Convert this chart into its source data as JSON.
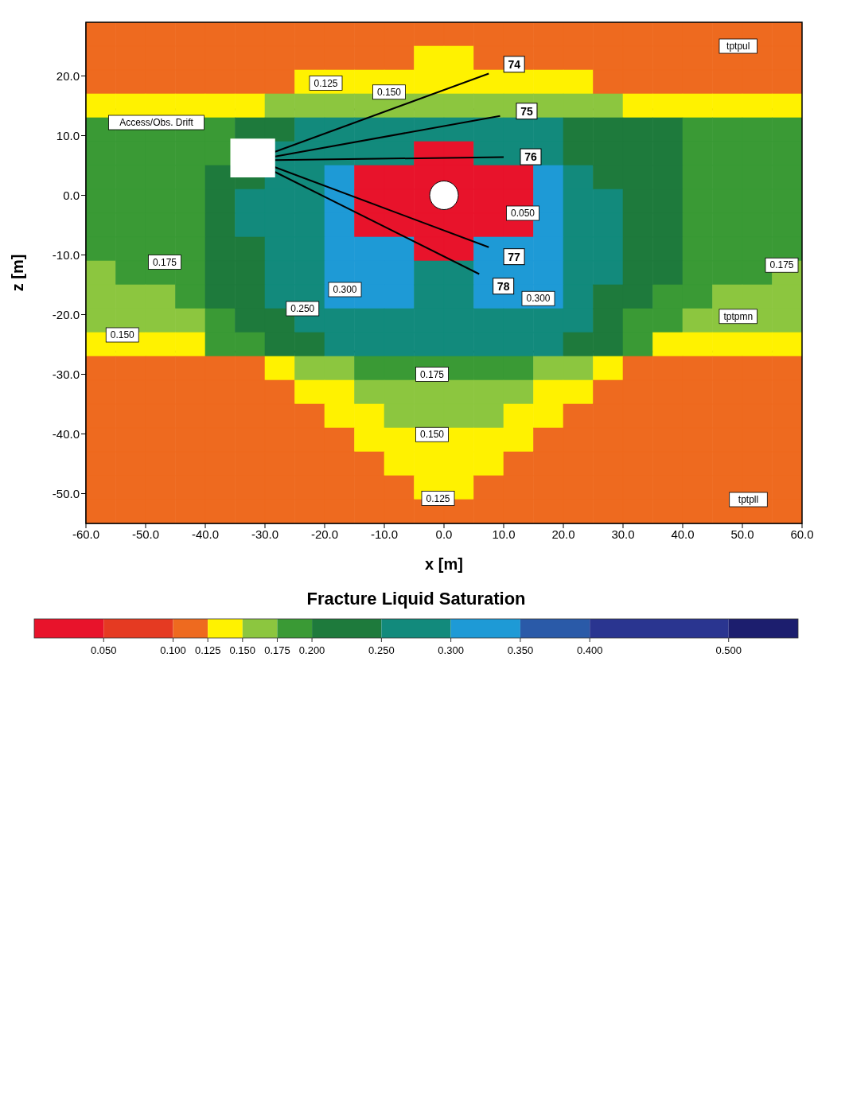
{
  "chart_data": {
    "type": "heatmap",
    "xlabel": "x [m]",
    "ylabel": "z [m]",
    "clabel": "Fracture Liquid Saturation",
    "xlim": [
      -60,
      60
    ],
    "ylim": [
      -55,
      29
    ],
    "xticks": [
      {
        "value": -60,
        "label": "-60.0"
      },
      {
        "value": -50,
        "label": "-50.0"
      },
      {
        "value": -40,
        "label": "-40.0"
      },
      {
        "value": -30,
        "label": "-30.0"
      },
      {
        "value": -20,
        "label": "-20.0"
      },
      {
        "value": -10,
        "label": "-10.0"
      },
      {
        "value": 0,
        "label": "0.0"
      },
      {
        "value": 10,
        "label": "10.0"
      },
      {
        "value": 20,
        "label": "20.0"
      },
      {
        "value": 30,
        "label": "30.0"
      },
      {
        "value": 40,
        "label": "40.0"
      },
      {
        "value": 50,
        "label": "50.0"
      },
      {
        "value": 60,
        "label": "60.0"
      }
    ],
    "yticks": [
      {
        "value": -50,
        "label": "-50.0"
      },
      {
        "value": -40,
        "label": "-40.0"
      },
      {
        "value": -30,
        "label": "-30.0"
      },
      {
        "value": -20,
        "label": "-20.0"
      },
      {
        "value": -10,
        "label": "-10.0"
      },
      {
        "value": 0,
        "label": "0.0"
      },
      {
        "value": 10,
        "label": "10.0"
      },
      {
        "value": 20,
        "label": "20.0"
      }
    ],
    "clim": [
      0,
      0.55
    ],
    "cticks": [
      {
        "value": 0.05,
        "label": "0.050"
      },
      {
        "value": 0.1,
        "label": "0.100"
      },
      {
        "value": 0.125,
        "label": "0.125"
      },
      {
        "value": 0.15,
        "label": "0.150"
      },
      {
        "value": 0.175,
        "label": "0.175"
      },
      {
        "value": 0.2,
        "label": "0.200"
      },
      {
        "value": 0.25,
        "label": "0.250"
      },
      {
        "value": 0.3,
        "label": "0.300"
      },
      {
        "value": 0.35,
        "label": "0.350"
      },
      {
        "value": 0.4,
        "label": "0.400"
      },
      {
        "value": 0.5,
        "label": "0.500"
      }
    ],
    "colors": [
      "#e8132b",
      "#e53a22",
      "#ee6a1f",
      "#fff200",
      "#8cc63f",
      "#3a9a35",
      "#1e7a3c",
      "#128a7c",
      "#1e9ad6",
      "#2a5aa8",
      "#2a3590",
      "#1c1e6e"
    ],
    "cells": [
      [
        0.11,
        0.11,
        0.11,
        0.11,
        0.11,
        0.11,
        0.11,
        0.11,
        0.11,
        0.11,
        0.11,
        0.11,
        0.11,
        0.11,
        0.11,
        0.11,
        0.11,
        0.11,
        0.11,
        0.11,
        0.11,
        0.11,
        0.11,
        0.11
      ],
      [
        0.11,
        0.11,
        0.11,
        0.11,
        0.11,
        0.11,
        0.11,
        0.11,
        0.11,
        0.11,
        0.11,
        0.14,
        0.14,
        0.11,
        0.11,
        0.11,
        0.11,
        0.11,
        0.11,
        0.11,
        0.11,
        0.11,
        0.11,
        0.11
      ],
      [
        0.11,
        0.11,
        0.11,
        0.11,
        0.11,
        0.11,
        0.11,
        0.14,
        0.14,
        0.14,
        0.14,
        0.14,
        0.14,
        0.14,
        0.14,
        0.14,
        0.14,
        0.11,
        0.11,
        0.11,
        0.11,
        0.11,
        0.11,
        0.11
      ],
      [
        0.14,
        0.14,
        0.14,
        0.14,
        0.14,
        0.14,
        0.16,
        0.16,
        0.16,
        0.16,
        0.16,
        0.16,
        0.16,
        0.16,
        0.16,
        0.16,
        0.16,
        0.16,
        0.14,
        0.14,
        0.14,
        0.14,
        0.14,
        0.14
      ],
      [
        0.19,
        0.19,
        0.19,
        0.19,
        0.19,
        0.22,
        0.22,
        0.28,
        0.28,
        0.28,
        0.28,
        0.28,
        0.28,
        0.28,
        0.28,
        0.28,
        0.22,
        0.22,
        0.22,
        0.22,
        0.19,
        0.19,
        0.19,
        0.19
      ],
      [
        0.19,
        0.19,
        0.19,
        0.19,
        0.19,
        null,
        0.28,
        0.28,
        0.28,
        0.28,
        0.28,
        0.04,
        0.04,
        0.28,
        0.28,
        0.28,
        0.22,
        0.22,
        0.22,
        0.22,
        0.19,
        0.19,
        0.19,
        0.19
      ],
      [
        0.19,
        0.19,
        0.19,
        0.19,
        0.22,
        0.22,
        0.28,
        0.28,
        0.32,
        0.04,
        0.04,
        0.04,
        0.04,
        0.04,
        0.04,
        0.32,
        0.28,
        0.22,
        0.22,
        0.22,
        0.19,
        0.19,
        0.19,
        0.19
      ],
      [
        0.19,
        0.19,
        0.19,
        0.19,
        0.22,
        0.28,
        0.28,
        0.28,
        0.32,
        0.04,
        0.04,
        0.04,
        0.04,
        0.04,
        0.04,
        0.32,
        0.28,
        0.28,
        0.22,
        0.22,
        0.19,
        0.19,
        0.19,
        0.19
      ],
      [
        0.19,
        0.19,
        0.19,
        0.19,
        0.22,
        0.28,
        0.28,
        0.28,
        0.32,
        0.04,
        0.04,
        0.04,
        0.04,
        0.04,
        0.04,
        0.32,
        0.28,
        0.28,
        0.22,
        0.22,
        0.19,
        0.19,
        0.19,
        0.19
      ],
      [
        0.19,
        0.19,
        0.19,
        0.19,
        0.22,
        0.22,
        0.28,
        0.28,
        0.32,
        0.32,
        0.32,
        0.04,
        0.04,
        0.32,
        0.32,
        0.32,
        0.28,
        0.28,
        0.22,
        0.22,
        0.19,
        0.19,
        0.19,
        0.19
      ],
      [
        0.16,
        0.19,
        0.19,
        0.19,
        0.22,
        0.22,
        0.28,
        0.28,
        0.32,
        0.32,
        0.32,
        0.28,
        0.28,
        0.32,
        0.32,
        0.32,
        0.28,
        0.28,
        0.22,
        0.22,
        0.19,
        0.19,
        0.19,
        0.16
      ],
      [
        0.16,
        0.16,
        0.16,
        0.19,
        0.22,
        0.22,
        0.28,
        0.28,
        0.32,
        0.32,
        0.32,
        0.28,
        0.28,
        0.32,
        0.32,
        0.32,
        0.28,
        0.22,
        0.22,
        0.19,
        0.19,
        0.16,
        0.16,
        0.16
      ],
      [
        0.16,
        0.16,
        0.16,
        0.16,
        0.19,
        0.22,
        0.22,
        0.28,
        0.28,
        0.28,
        0.28,
        0.28,
        0.28,
        0.28,
        0.28,
        0.28,
        0.28,
        0.22,
        0.19,
        0.19,
        0.16,
        0.16,
        0.16,
        0.16
      ],
      [
        0.14,
        0.14,
        0.14,
        0.14,
        0.19,
        0.19,
        0.22,
        0.22,
        0.28,
        0.28,
        0.28,
        0.28,
        0.28,
        0.28,
        0.28,
        0.28,
        0.22,
        0.22,
        0.19,
        0.14,
        0.14,
        0.14,
        0.14,
        0.14
      ],
      [
        0.11,
        0.11,
        0.11,
        0.11,
        0.11,
        0.11,
        0.14,
        0.16,
        0.16,
        0.19,
        0.19,
        0.19,
        0.19,
        0.19,
        0.19,
        0.16,
        0.16,
        0.14,
        0.11,
        0.11,
        0.11,
        0.11,
        0.11,
        0.11
      ],
      [
        0.11,
        0.11,
        0.11,
        0.11,
        0.11,
        0.11,
        0.11,
        0.14,
        0.14,
        0.16,
        0.16,
        0.16,
        0.16,
        0.16,
        0.16,
        0.14,
        0.14,
        0.11,
        0.11,
        0.11,
        0.11,
        0.11,
        0.11,
        0.11
      ],
      [
        0.11,
        0.11,
        0.11,
        0.11,
        0.11,
        0.11,
        0.11,
        0.11,
        0.14,
        0.14,
        0.16,
        0.16,
        0.16,
        0.16,
        0.14,
        0.14,
        0.11,
        0.11,
        0.11,
        0.11,
        0.11,
        0.11,
        0.11,
        0.11
      ],
      [
        0.11,
        0.11,
        0.11,
        0.11,
        0.11,
        0.11,
        0.11,
        0.11,
        0.11,
        0.14,
        0.14,
        0.14,
        0.14,
        0.14,
        0.14,
        0.11,
        0.11,
        0.11,
        0.11,
        0.11,
        0.11,
        0.11,
        0.11,
        0.11
      ],
      [
        0.11,
        0.11,
        0.11,
        0.11,
        0.11,
        0.11,
        0.11,
        0.11,
        0.11,
        0.11,
        0.14,
        0.14,
        0.14,
        0.14,
        0.11,
        0.11,
        0.11,
        0.11,
        0.11,
        0.11,
        0.11,
        0.11,
        0.11,
        0.11
      ],
      [
        0.11,
        0.11,
        0.11,
        0.11,
        0.11,
        0.11,
        0.11,
        0.11,
        0.11,
        0.11,
        0.11,
        0.14,
        0.14,
        0.11,
        0.11,
        0.11,
        0.11,
        0.11,
        0.11,
        0.11,
        0.11,
        0.11,
        0.11,
        0.11
      ],
      [
        0.11,
        0.11,
        0.11,
        0.11,
        0.11,
        0.11,
        0.11,
        0.11,
        0.11,
        0.11,
        0.11,
        0.11,
        0.11,
        0.11,
        0.11,
        0.11,
        0.11,
        0.11,
        0.11,
        0.11,
        0.11,
        0.11,
        0.11,
        0.11
      ]
    ],
    "series": [
      {
        "type": "line",
        "name": "74",
        "color": "#000000",
        "x": [
          -28.3,
          7.5
        ],
        "values": [
          7.3,
          20.4
        ]
      },
      {
        "type": "line",
        "name": "75",
        "color": "#000000",
        "x": [
          -28.3,
          9.4
        ],
        "values": [
          6.5,
          13.3
        ]
      },
      {
        "type": "line",
        "name": "76",
        "color": "#000000",
        "x": [
          -28.3,
          10.0
        ],
        "values": [
          5.9,
          6.4
        ]
      },
      {
        "type": "line",
        "name": "77",
        "color": "#000000",
        "x": [
          -28.3,
          7.5
        ],
        "values": [
          4.7,
          -8.7
        ]
      },
      {
        "type": "line",
        "name": "78",
        "color": "#000000",
        "x": [
          -28.3,
          5.9
        ],
        "values": [
          3.9,
          -13.2
        ]
      }
    ],
    "ref_lines": [
      {
        "axis": "y",
        "value": 14.4,
        "color": "#000000"
      },
      {
        "axis": "y",
        "value": -26.2,
        "color": "#000000"
      }
    ],
    "annotations": [
      "tptpul",
      "tptpmn",
      "tptpll",
      "Access/Obs. Drift",
      "0.175",
      "0.150",
      "0.125",
      "0.300",
      "0.050",
      "0.175",
      "0.150",
      "0.125",
      "0.300",
      "0.250",
      "0.175",
      "0.150"
    ]
  }
}
